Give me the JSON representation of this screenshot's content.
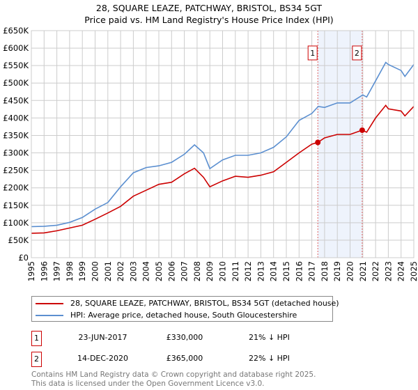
{
  "title_line1": "28, SQUARE LEAZE, PATCHWAY, BRISTOL, BS34 5GT",
  "title_line2": "Price paid vs. HM Land Registry's House Price Index (HPI)",
  "chart_data": {
    "type": "line",
    "title": "28, SQUARE LEAZE, PATCHWAY, BRISTOL, BS34 5GT — Price paid vs. HM Land Registry's House Price Index (HPI)",
    "xlabel": "",
    "ylabel": "",
    "xlim": [
      1995,
      2025
    ],
    "ylim": [
      0,
      650000
    ],
    "grid": true,
    "legend_position": "below",
    "x_ticks": [
      "1995",
      "1996",
      "1997",
      "1998",
      "1999",
      "2000",
      "2001",
      "2002",
      "2003",
      "2004",
      "2005",
      "2006",
      "2007",
      "2008",
      "2009",
      "2010",
      "2011",
      "2012",
      "2013",
      "2014",
      "2015",
      "2016",
      "2017",
      "2018",
      "2019",
      "2020",
      "2021",
      "2022",
      "2023",
      "2024",
      "2025"
    ],
    "y_ticks": [
      {
        "v": 0,
        "label": "£0"
      },
      {
        "v": 50000,
        "label": "£50K"
      },
      {
        "v": 100000,
        "label": "£100K"
      },
      {
        "v": 150000,
        "label": "£150K"
      },
      {
        "v": 200000,
        "label": "£200K"
      },
      {
        "v": 250000,
        "label": "£250K"
      },
      {
        "v": 300000,
        "label": "£300K"
      },
      {
        "v": 350000,
        "label": "£350K"
      },
      {
        "v": 400000,
        "label": "£400K"
      },
      {
        "v": 450000,
        "label": "£450K"
      },
      {
        "v": 500000,
        "label": "£500K"
      },
      {
        "v": 550000,
        "label": "£550K"
      },
      {
        "v": 600000,
        "label": "£600K"
      },
      {
        "v": 650000,
        "label": "£650K"
      }
    ],
    "series": [
      {
        "name": "28, SQUARE LEAZE, PATCHWAY, BRISTOL, BS34 5GT (detached house)",
        "color": "#cc0000",
        "x": [
          1995,
          1996,
          1997,
          1998,
          1999,
          2000,
          2001,
          2002,
          2003,
          2004,
          2005,
          2006,
          2007,
          2007.8,
          2008.5,
          2009,
          2010,
          2011,
          2012,
          2013,
          2014,
          2015,
          2016,
          2017,
          2017.47,
          2018,
          2019,
          2020,
          2020.95,
          2021.3,
          2022,
          2022.8,
          2023,
          2024,
          2024.3,
          2025
        ],
        "y": [
          70000,
          71000,
          77000,
          85000,
          93000,
          110000,
          128000,
          147000,
          176000,
          193000,
          210000,
          216000,
          240000,
          256000,
          230000,
          203000,
          220000,
          233000,
          230000,
          236000,
          246000,
          273000,
          300000,
          325000,
          330000,
          343000,
          353000,
          353000,
          365000,
          359000,
          400000,
          436000,
          426000,
          420000,
          406000,
          433000
        ]
      },
      {
        "name": "HPI: Average price, detached house, South Gloucestershire",
        "color": "#5b8fd0",
        "x": [
          1995,
          1996,
          1997,
          1998,
          1999,
          2000,
          2001,
          2002,
          2003,
          2004,
          2005,
          2006,
          2007,
          2007.8,
          2008.5,
          2009,
          2010,
          2011,
          2012,
          2013,
          2014,
          2015,
          2016,
          2017,
          2017.5,
          2018,
          2019,
          2020,
          2021,
          2021.3,
          2022,
          2022.8,
          2023,
          2024,
          2024.3,
          2025
        ],
        "y": [
          89000,
          90000,
          93000,
          101000,
          115000,
          139000,
          158000,
          203000,
          243000,
          258000,
          263000,
          273000,
          296000,
          323000,
          300000,
          255000,
          280000,
          293000,
          293000,
          300000,
          316000,
          346000,
          393000,
          413000,
          433000,
          430000,
          443000,
          443000,
          466000,
          460000,
          506000,
          559000,
          553000,
          536000,
          519000,
          553000
        ]
      }
    ],
    "annotations": [
      {
        "label": "1",
        "x": 2017.47,
        "y": 330000
      },
      {
        "label": "2",
        "x": 2020.95,
        "y": 365000
      }
    ],
    "shaded_range": [
      2017.47,
      2020.95
    ]
  },
  "legend": {
    "property": "28, SQUARE LEAZE, PATCHWAY, BRISTOL, BS34 5GT (detached house)",
    "hpi": "HPI: Average price, detached house, South Gloucestershire",
    "property_color": "#cc0000",
    "hpi_color": "#5b8fd0"
  },
  "sales": [
    {
      "num": "1",
      "date": "23-JUN-2017",
      "price": "£330,000",
      "hpi": "21% ↓ HPI"
    },
    {
      "num": "2",
      "date": "14-DEC-2020",
      "price": "£365,000",
      "hpi": "22% ↓ HPI"
    }
  ],
  "footer": {
    "line1": "Contains HM Land Registry data © Crown copyright and database right 2025.",
    "line2": "This data is licensed under the Open Government Licence v3.0."
  }
}
